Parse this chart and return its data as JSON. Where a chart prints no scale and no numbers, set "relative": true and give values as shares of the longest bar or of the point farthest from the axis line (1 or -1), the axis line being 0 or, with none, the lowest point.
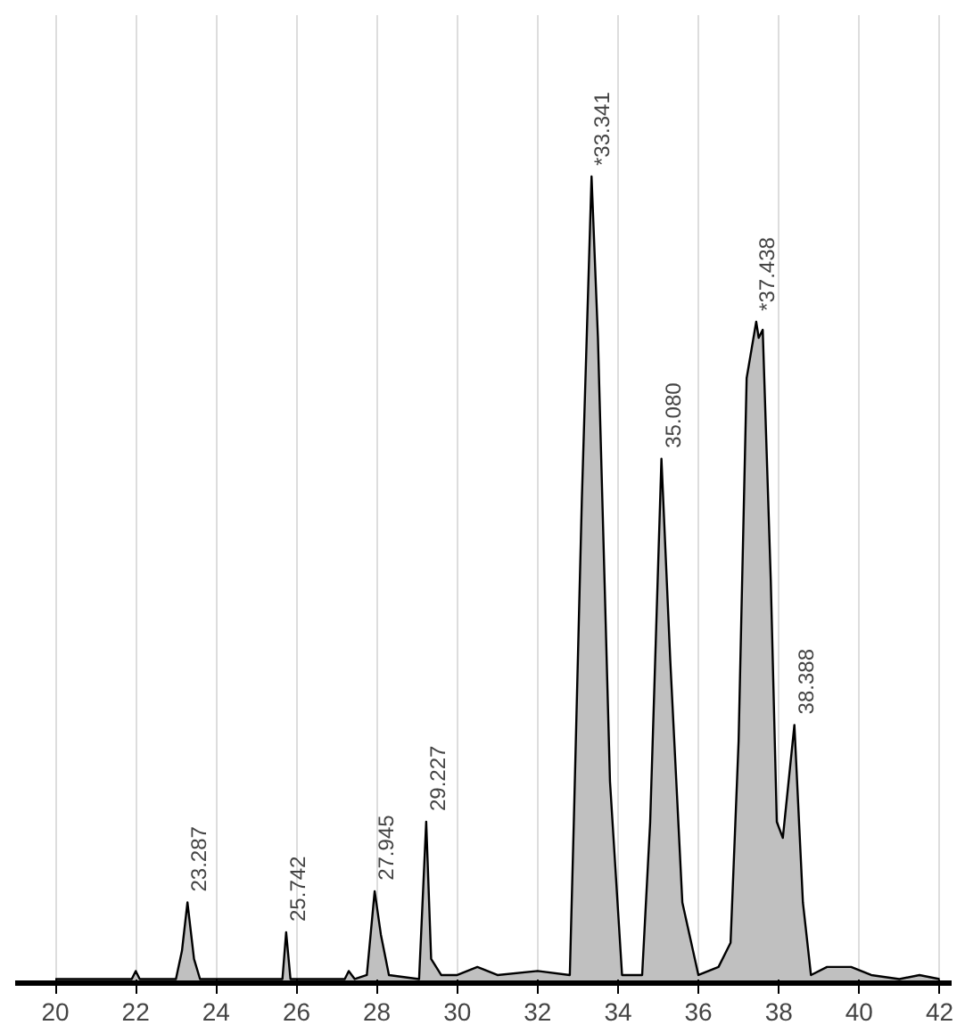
{
  "chart_data": {
    "type": "area",
    "relative": true,
    "x": [
      20,
      21.9,
      22.0,
      22.1,
      23.0,
      23.15,
      23.287,
      23.45,
      23.6,
      25.65,
      25.742,
      25.85,
      27.2,
      27.3,
      27.45,
      27.75,
      27.945,
      28.1,
      28.3,
      29.05,
      29.227,
      29.35,
      29.6,
      30.0,
      30.5,
      31,
      32,
      32.8,
      32.9,
      33.1,
      33.341,
      33.5,
      33.8,
      34.1,
      34.6,
      34.8,
      35.08,
      35.3,
      35.6,
      36.0,
      36.5,
      36.8,
      37.0,
      37.2,
      37.438,
      37.5,
      37.6,
      37.8,
      37.95,
      38.1,
      38.388,
      38.6,
      38.8,
      39.2,
      39.8,
      40.3,
      41,
      41.5,
      42
    ],
    "series": [
      {
        "color": "#c0c0c0",
        "values": [
          0.005,
          0.005,
          0.015,
          0.005,
          0.005,
          0.04,
          0.1,
          0.03,
          0.005,
          0.005,
          0.063,
          0.005,
          0.005,
          0.015,
          0.005,
          0.01,
          0.114,
          0.06,
          0.01,
          0.005,
          0.2,
          0.03,
          0.01,
          0.01,
          0.02,
          0.01,
          0.015,
          0.01,
          0.2,
          0.6,
          1.0,
          0.8,
          0.25,
          0.01,
          0.01,
          0.2,
          0.65,
          0.4,
          0.1,
          0.01,
          0.02,
          0.05,
          0.3,
          0.75,
          0.82,
          0.8,
          0.81,
          0.5,
          0.2,
          0.18,
          0.32,
          0.1,
          0.01,
          0.02,
          0.02,
          0.01,
          0.005,
          0.01,
          0.005
        ]
      }
    ],
    "xlim": [
      19.0,
      42.3
    ],
    "xticks": [
      20,
      22,
      24,
      26,
      28,
      30,
      32,
      34,
      36,
      38,
      40,
      42
    ],
    "grid": "x",
    "tick_labels": "x",
    "annotations": [
      {
        "text": "23.287",
        "x": 23.287,
        "y": 0.1
      },
      {
        "text": "25.742",
        "x": 25.742,
        "y": 0.063
      },
      {
        "text": "27.945",
        "x": 27.945,
        "y": 0.114
      },
      {
        "text": "29.227",
        "x": 29.227,
        "y": 0.2
      },
      {
        "text": "*33.341",
        "x": 33.341,
        "y": 1.0
      },
      {
        "text": "35.080",
        "x": 35.08,
        "y": 0.65
      },
      {
        "text": "*37.438",
        "x": 37.438,
        "y": 0.82
      },
      {
        "text": "38.388",
        "x": 38.388,
        "y": 0.32
      }
    ]
  }
}
